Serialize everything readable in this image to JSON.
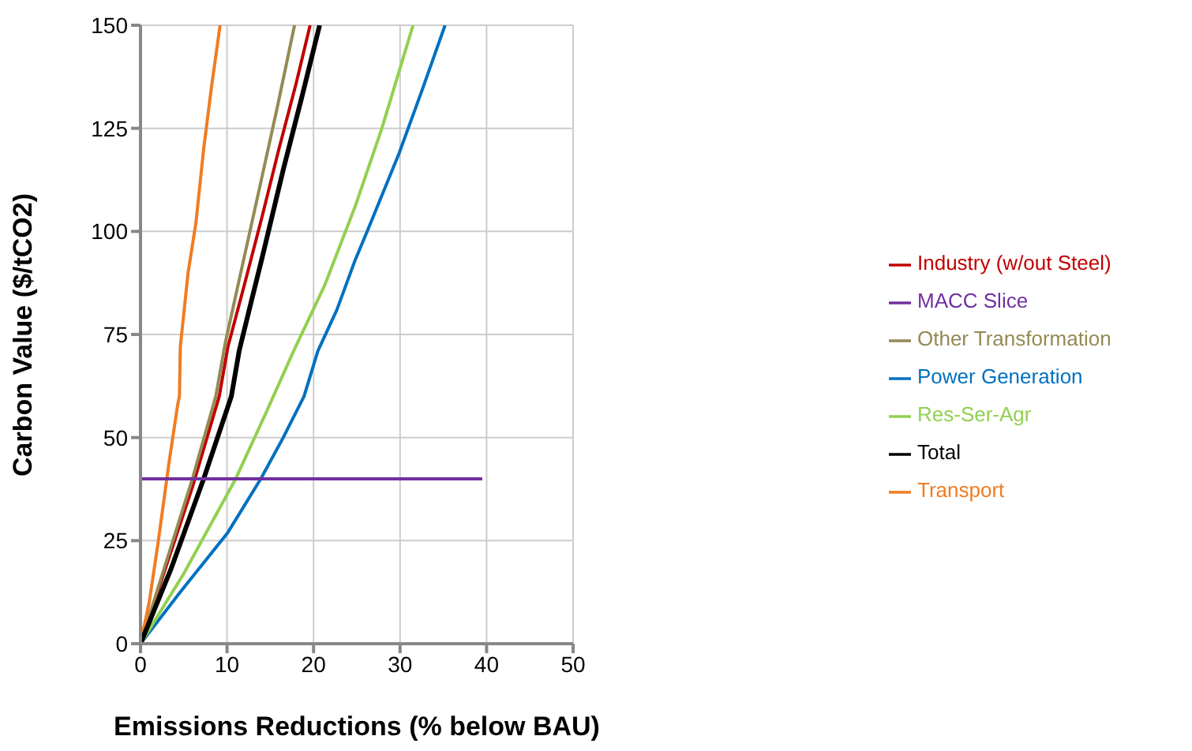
{
  "chart_data": {
    "type": "line",
    "xlabel": "Emissions Reductions (% below BAU)",
    "ylabel": "Carbon Value ($/tCO2)",
    "xlim": [
      0,
      50
    ],
    "xticks": [
      0,
      10,
      20,
      30,
      40,
      50
    ],
    "ylim": [
      0,
      150
    ],
    "yticks": [
      0,
      25,
      50,
      75,
      100,
      125,
      150
    ],
    "grid": true,
    "legend": "right",
    "marker": "none",
    "line_style": "solid",
    "series": [
      {
        "name": "Industry (w/out Steel)",
        "color": "#c00000",
        "x": [
          0,
          3,
          6,
          9.1,
          10.1,
          12,
          14.1,
          16,
          18,
          19.6
        ],
        "values": [
          0,
          19,
          38,
          60,
          72,
          87,
          104,
          120,
          136,
          150
        ]
      },
      {
        "name": "Power Generation",
        "color": "#0070c0",
        "x": [
          0,
          4.4,
          10.1,
          13.9,
          16.5,
          18.9,
          20.5,
          22.7,
          24.8,
          26.2,
          29.9,
          32.5,
          35.2
        ],
        "values": [
          0,
          12,
          27,
          40,
          50,
          60,
          71,
          81,
          93,
          100,
          119,
          134,
          150
        ]
      },
      {
        "name": "Other Transformation",
        "color": "#948a54",
        "x": [
          0,
          3,
          6,
          8.7,
          9.8,
          11.8,
          13.7,
          15.8,
          17.8
        ],
        "values": [
          0,
          20,
          40,
          60,
          73,
          92,
          110,
          130,
          150
        ]
      },
      {
        "name": "Res-Ser-Agr",
        "color": "#92d050",
        "x": [
          0,
          5,
          11,
          14.5,
          17.7,
          21.3,
          24.8,
          27.9,
          31.5
        ],
        "values": [
          0,
          17,
          40,
          56,
          71,
          87,
          106,
          125,
          150
        ]
      },
      {
        "name": "Transport",
        "color": "#f07c22",
        "x": [
          0,
          1,
          2,
          3.3,
          4.3,
          4.5,
          4.6,
          5.5,
          6.4,
          7.3,
          8.2,
          9.2
        ],
        "values": [
          0,
          10,
          24,
          44,
          58,
          60,
          72,
          90,
          102,
          120,
          135,
          150
        ]
      },
      {
        "name": "Total",
        "color": "#000000",
        "x": [
          0,
          3.5,
          7.3,
          10.5,
          11.4,
          12.8,
          14.1,
          16.5,
          18.7,
          20.7
        ],
        "values": [
          0,
          18,
          40,
          60,
          71,
          83,
          94,
          115,
          133,
          150
        ]
      },
      {
        "name": "MACC Slice",
        "color": "#7030a0",
        "x": [
          0,
          39.5
        ],
        "values": [
          40,
          40
        ]
      }
    ]
  }
}
